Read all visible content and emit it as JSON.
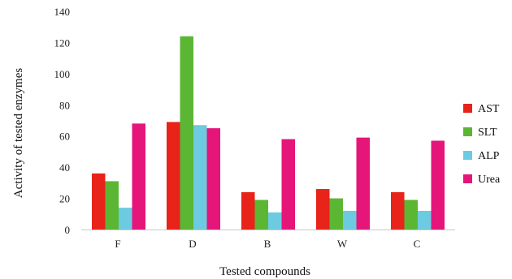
{
  "chart_data": {
    "type": "bar",
    "categories": [
      "F",
      "D",
      "B",
      "W",
      "C"
    ],
    "series": [
      {
        "name": "AST",
        "color": "#e8231a",
        "values": [
          36,
          69,
          24,
          26,
          24
        ]
      },
      {
        "name": "SLT",
        "color": "#5bb634",
        "values": [
          31,
          124,
          19,
          20,
          19
        ]
      },
      {
        "name": "ALP",
        "color": "#6ccbe0",
        "values": [
          14,
          67,
          11,
          12,
          12
        ]
      },
      {
        "name": "Urea",
        "color": "#e5157a",
        "values": [
          68,
          65,
          58,
          59,
          57
        ]
      }
    ],
    "title": "",
    "xlabel": "Tested compounds",
    "ylabel": "Activity of tested enzymes",
    "ylim": [
      0,
      140
    ],
    "yticks": [
      0,
      20,
      40,
      60,
      80,
      100,
      120,
      140
    ],
    "grid": false,
    "legend": "right"
  }
}
